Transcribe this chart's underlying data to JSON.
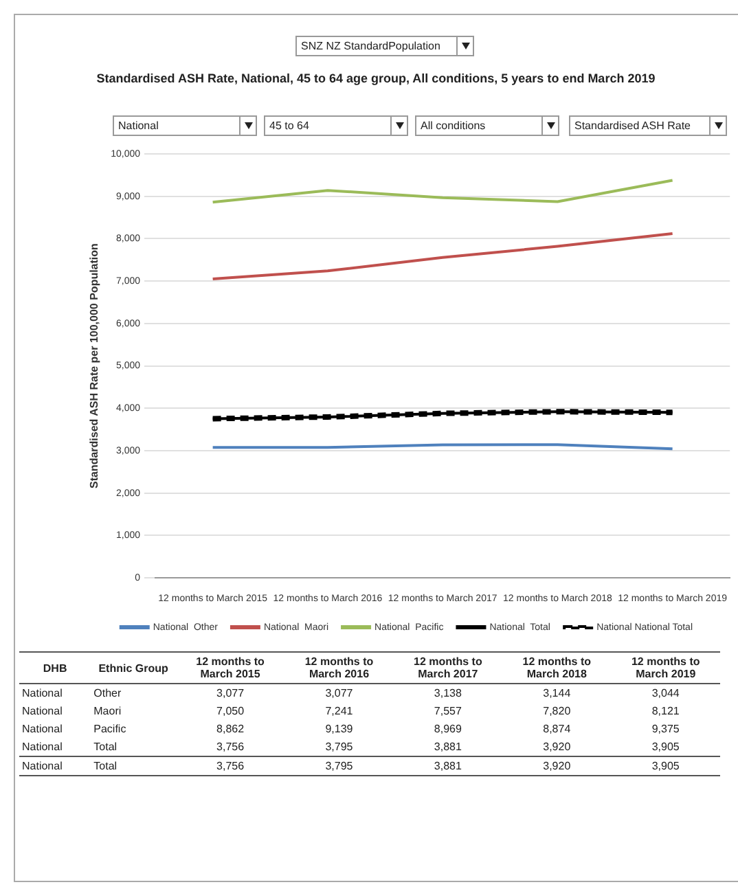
{
  "chart_data": {
    "type": "line",
    "title": "Standardised ASH Rate, National, 45 to 64 age group, All conditions, 5 years to end March 2019",
    "ylabel": "Standardised ASH Rate per 100,000 Population",
    "categories": [
      "12 months to March 2015",
      "12 months to March 2016",
      "12 months to March 2017",
      "12 months to March 2018",
      "12 months to March 2019"
    ],
    "series": [
      {
        "name": "National  Other",
        "color": "#4f81bd",
        "values": [
          3077,
          3077,
          3138,
          3144,
          3044
        ]
      },
      {
        "name": "National  Maori",
        "color": "#c0504d",
        "values": [
          7050,
          7241,
          7557,
          7820,
          8121
        ]
      },
      {
        "name": "National  Pacific",
        "color": "#9bbb59",
        "values": [
          8862,
          9139,
          8969,
          8874,
          9375
        ]
      },
      {
        "name": "National  Total",
        "color": "#000000",
        "line_style": "solid",
        "values": [
          3756,
          3795,
          3881,
          3920,
          3905
        ]
      },
      {
        "name": "National National Total",
        "color": "#000000",
        "line_style": "dashed",
        "values": [
          3756,
          3795,
          3881,
          3920,
          3905
        ]
      }
    ],
    "ylim": [
      0,
      10000
    ],
    "yticks": [
      0,
      {
        "value": 1000,
        "label": "1,000"
      },
      {
        "value": 2000,
        "label": "2,000"
      },
      {
        "value": 3000,
        "label": "3,000"
      },
      {
        "value": 4000,
        "label": "4,000"
      },
      {
        "value": 5000,
        "label": "5,000"
      },
      {
        "value": 6000,
        "label": "6,000"
      },
      {
        "value": 7000,
        "label": "7,000"
      },
      {
        "value": 8000,
        "label": "8,000"
      },
      {
        "value": 9000,
        "label": "9,000"
      },
      {
        "value": 10000,
        "label": "10,000"
      }
    ],
    "grid": "y",
    "legend": "bottom",
    "marker": "none",
    "annotations": [
      "SNZ NZ StandardPopulation",
      "National",
      "45 to 64",
      "All conditions",
      "Standardised ASH Rate",
      "DHB",
      "Ethnic Group",
      "National",
      "Other",
      "3,077",
      "3,077",
      "3,138",
      "3,144",
      "3,044",
      "National",
      "Maori",
      "7,050",
      "7,241",
      "7,557",
      "7,820",
      "8,121",
      "National",
      "Pacific",
      "8,862",
      "9,139",
      "8,969",
      "8,874",
      "9,375",
      "National",
      "Total",
      "3,756",
      "3,795",
      "3,881",
      "3,920",
      "3,905",
      "National",
      "Total",
      "3,756",
      "3,795",
      "3,881",
      "3,920",
      "3,905"
    ]
  }
}
